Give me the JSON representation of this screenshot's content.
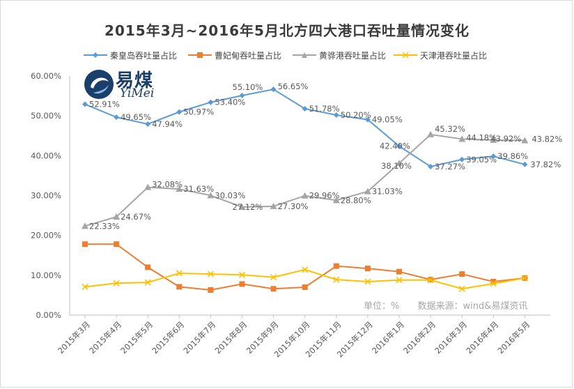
{
  "chart_data": {
    "type": "line",
    "title": "2015年3月~2016年5月北方四大港口吞吐量情况变化",
    "categories": [
      "2015年3月",
      "2015年4月",
      "2015年5月",
      "2015年6月",
      "2015年7月",
      "2015年8月",
      "2015年9月",
      "2015年10月",
      "2015年11月",
      "2015年12月",
      "2016年1月",
      "2016年2月",
      "2016年3月",
      "2016年4月",
      "2016年5月"
    ],
    "ylim": [
      0,
      60
    ],
    "yticks": [
      "0.00%",
      "10.00%",
      "20.00%",
      "30.00%",
      "40.00%",
      "50.00%",
      "60.00%"
    ],
    "grid": false,
    "legend_position": "top",
    "series": [
      {
        "name": "秦皇岛吞吐量占比",
        "color": "#5b9bd5",
        "marker": "diamond",
        "values": [
          52.91,
          49.65,
          47.94,
          50.97,
          53.4,
          55.1,
          56.65,
          51.78,
          50.2,
          49.05,
          42.4,
          37.27,
          39.05,
          39.86,
          37.82
        ],
        "labels": [
          "52.91%",
          "49.65%",
          "47.94%",
          "50.97%",
          "53.40%",
          "55.10%",
          "56.65%",
          "51.78%",
          "50.20%",
          "49.05%",
          "42.40%",
          "37.27%",
          "39.05%",
          "39.86%",
          "37.82%"
        ]
      },
      {
        "name": "曹妃甸吞吐量占比",
        "color": "#ed7d31",
        "marker": "square",
        "values": [
          17.8,
          17.8,
          12.0,
          7.1,
          6.3,
          7.8,
          6.6,
          7.0,
          12.3,
          11.7,
          10.9,
          8.9,
          10.3,
          8.4,
          9.3
        ],
        "labels": []
      },
      {
        "name": "黄骅港吞吐量占比",
        "color": "#a5a5a5",
        "marker": "triangle",
        "values": [
          22.33,
          24.67,
          32.08,
          31.63,
          30.03,
          27.12,
          27.3,
          29.96,
          28.8,
          31.03,
          38.1,
          45.32,
          44.18,
          43.92,
          43.82
        ],
        "labels": [
          "22.33%",
          "24.67%",
          "32.08%",
          "31.63%",
          "30.03%",
          "27.12%",
          "27.30%",
          "29.96%",
          "28.80%",
          "31.03%",
          "38.10%",
          "45.32%",
          "44.18%",
          "43.92%",
          "43.82%"
        ]
      },
      {
        "name": "天津港吞吐量占比",
        "color": "#ffc000",
        "marker": "x",
        "values": [
          7.1,
          8.0,
          8.2,
          10.5,
          10.3,
          10.1,
          9.5,
          11.4,
          8.9,
          8.4,
          8.8,
          8.8,
          6.6,
          7.9,
          9.3
        ],
        "labels": []
      }
    ]
  },
  "logo": {
    "cn": "易煤",
    "en": "YiMei"
  },
  "source": {
    "unit": "单位：%",
    "text": "数据来源：wind&易煤资讯"
  }
}
